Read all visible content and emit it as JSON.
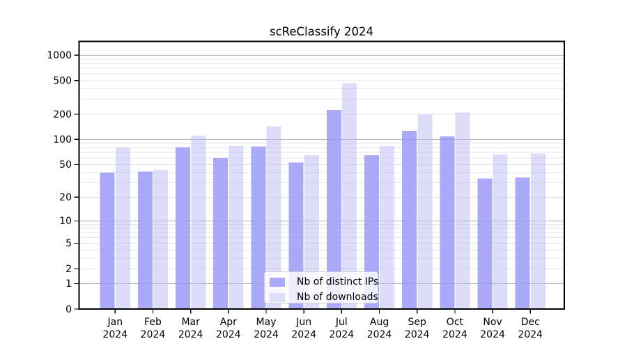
{
  "chart_data": {
    "type": "bar",
    "title": "scReClassify 2024",
    "year_label": "2024",
    "categories": [
      "Jan",
      "Feb",
      "Mar",
      "Apr",
      "May",
      "Jun",
      "Jul",
      "Aug",
      "Sep",
      "Oct",
      "Nov",
      "Dec"
    ],
    "series": [
      {
        "name": "Nb of distinct IPs",
        "color": "#a9a9f7",
        "fill": "rgba(149,149,247,0.8)",
        "values": [
          40,
          41,
          81,
          60,
          82,
          53,
          225,
          65,
          127,
          109,
          34,
          35
        ]
      },
      {
        "name": "Nb of downloads",
        "color": "#dedef9",
        "fill": "rgba(187,187,243,0.5)",
        "values": [
          81,
          43,
          111,
          84,
          144,
          65,
          465,
          83,
          199,
          209,
          66,
          68
        ]
      }
    ],
    "y_axis": {
      "scale": "log10(value+1)",
      "ticks": [
        0,
        1,
        2,
        5,
        10,
        20,
        50,
        100,
        200,
        500,
        1000
      ],
      "major_gridlines": [
        1,
        10,
        100,
        1000
      ],
      "minor_gridlines": [
        2,
        3,
        4,
        5,
        6,
        7,
        8,
        9,
        20,
        30,
        40,
        50,
        60,
        70,
        80,
        90,
        200,
        300,
        400,
        500,
        600,
        700,
        800,
        900
      ],
      "ylim": [
        0,
        1460
      ]
    },
    "legend": {
      "position": "lower center"
    },
    "colors": {
      "axis": "#000000",
      "grid_major": "#b0b0b0",
      "grid_minor": "#e4e4e4"
    },
    "grid": true
  }
}
